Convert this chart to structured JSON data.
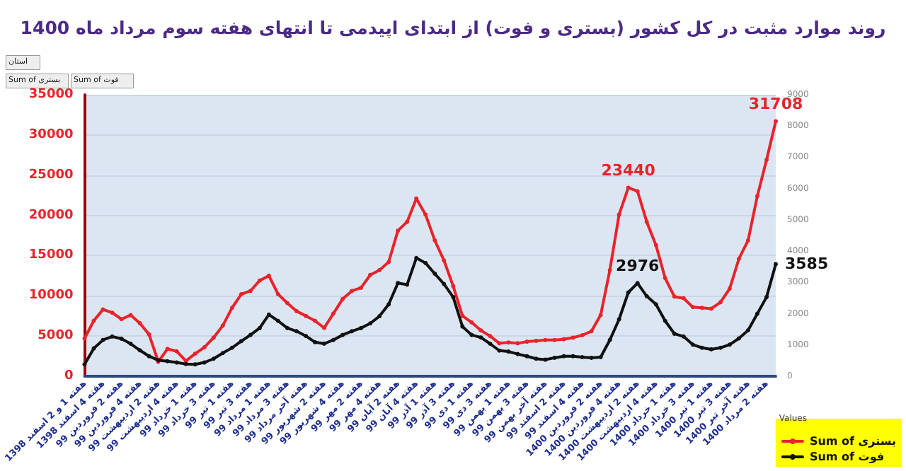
{
  "chart_data": {
    "type": "line",
    "title": "روند موارد مثبت در کل کشور (بستری و فوت) از ابتدای اپیدمی تا انتهای هفته سوم مرداد ماه 1400",
    "categories": [
      "هفته 1 و 2 اسفند 1398",
      null,
      "هفته 4 اسفند 1398",
      null,
      "هفته 2 فروردین 99",
      null,
      "هفته 4 فروردین 99",
      null,
      "هفته 2 اردیبهشت 99",
      null,
      "هفته 4 اردیبهشت 99",
      null,
      "هفته 1 خرداد 99",
      null,
      "هفته 3 خرداد 99",
      null,
      "هفته 1 تیر 99",
      null,
      "هفته 3 تیر 99",
      null,
      "هفته 1 مرداد 99",
      null,
      "هفته 3 مرداد 99",
      null,
      "هفته آخر مرداد 99",
      null,
      "هفته 2 شهریور 99",
      null,
      "هفته 4 شهریور 99",
      null,
      "هفته 2 مهر 99",
      null,
      "هفته 4 مهر 99",
      null,
      "هفته 2 آبان 99",
      null,
      "هفته 4 آبان 99",
      null,
      "هفته 1 آذر 99",
      null,
      "هفته 3 آذر 99",
      null,
      "هفته 1 دی 99",
      null,
      "هفته 3 دی 99",
      null,
      "هفته 1 بهمن 99",
      null,
      "هفته 3 بهمن 99",
      null,
      "هفته آخر بهمن 99",
      null,
      "هفته 2 اسفند 99",
      null,
      "هفته 4 اسفند 99",
      null,
      "هفته 2 فروردین 1400",
      null,
      "هفته 4 فروردین 1400",
      null,
      "هفته 2 اردیبهشت 1400",
      null,
      "هفته 4 اردیبهشت 1400",
      null,
      "هفته 1 خرداد 1400",
      null,
      "هفته 3 خرداد 1400",
      null,
      "هفته 1 تیر 1400",
      null,
      "هفته 3 تیر 1400",
      null,
      "هفته آخر تیر 1400",
      null,
      "هفته 2 مرداد 1400",
      null
    ],
    "series": [
      {
        "name": "Sum of بستری",
        "color": "#e8232b",
        "values": [
          4700,
          6900,
          8300,
          7900,
          7100,
          7600,
          6600,
          5200,
          1800,
          3400,
          3100,
          1900,
          2800,
          3600,
          4800,
          6300,
          8500,
          10200,
          10600,
          11900,
          12500,
          10200,
          9100,
          8100,
          7500,
          6900,
          6000,
          7800,
          9600,
          10600,
          11000,
          12600,
          13200,
          14200,
          18100,
          19200,
          22100,
          20100,
          16900,
          14400,
          11200,
          7500,
          6700,
          5700,
          5000,
          4100,
          4200,
          4100,
          4300,
          4400,
          4500,
          4500,
          4600,
          4800,
          5100,
          5600,
          7600,
          13200,
          20100,
          23440,
          23000,
          19200,
          16300,
          12200,
          9900,
          9700,
          8600,
          8500,
          8400,
          9200,
          10900,
          14600,
          16900,
          22400,
          26900,
          31708
        ],
        "value_labels": [
          null,
          null,
          null,
          null,
          null,
          null,
          null,
          null,
          null,
          null,
          null,
          null,
          null,
          null,
          null,
          null,
          null,
          null,
          null,
          null,
          null,
          null,
          null,
          null,
          null,
          null,
          null,
          null,
          null,
          null,
          null,
          null,
          null,
          null,
          null,
          null,
          null,
          null,
          null,
          null,
          null,
          null,
          null,
          null,
          null,
          null,
          null,
          null,
          null,
          null,
          null,
          null,
          null,
          null,
          null,
          null,
          null,
          null,
          null,
          "23440",
          null,
          null,
          null,
          null,
          null,
          null,
          null,
          null,
          null,
          null,
          null,
          null,
          null,
          null,
          null,
          "31708"
        ]
      },
      {
        "name": "Sum of فوت",
        "color": "#111111",
        "axis": "y2",
        "values": [
          380,
          890,
          1160,
          1270,
          1200,
          1040,
          830,
          640,
          510,
          480,
          440,
          390,
          380,
          440,
          560,
          740,
          910,
          1120,
          1320,
          1540,
          1970,
          1770,
          1540,
          1440,
          1290,
          1090,
          1040,
          1160,
          1320,
          1440,
          1540,
          1690,
          1920,
          2300,
          2980,
          2930,
          3780,
          3620,
          3280,
          2950,
          2530,
          1590,
          1320,
          1240,
          1040,
          820,
          790,
          710,
          640,
          560,
          530,
          590,
          640,
          640,
          610,
          590,
          610,
          1160,
          1820,
          2680,
          2976,
          2560,
          2300,
          1770,
          1360,
          1270,
          1010,
          910,
          860,
          910,
          1010,
          1210,
          1470,
          2000,
          2530,
          3585
        ],
        "value_labels": [
          null,
          null,
          null,
          null,
          null,
          null,
          null,
          null,
          null,
          null,
          null,
          null,
          null,
          null,
          null,
          null,
          null,
          null,
          null,
          null,
          null,
          null,
          null,
          null,
          null,
          null,
          null,
          null,
          null,
          null,
          null,
          null,
          null,
          null,
          null,
          null,
          null,
          null,
          null,
          null,
          null,
          null,
          null,
          null,
          null,
          null,
          null,
          null,
          null,
          null,
          null,
          null,
          null,
          null,
          null,
          null,
          null,
          null,
          null,
          null,
          "2976",
          null,
          null,
          null,
          null,
          null,
          null,
          null,
          null,
          null,
          null,
          null,
          null,
          null,
          null,
          "3585"
        ]
      }
    ],
    "ylim": [
      0,
      35000
    ],
    "yticks": [
      0,
      5000,
      10000,
      15000,
      20000,
      25000,
      30000,
      35000
    ],
    "y2lim": [
      0,
      9000
    ],
    "y2ticks": [
      0,
      1000,
      2000,
      3000,
      4000,
      5000,
      6000,
      7000,
      8000,
      9000
    ],
    "grid": "y",
    "legend": "bottom right",
    "legend_title": "Values",
    "marker": "circle",
    "line_style": "solid",
    "annotations": [
      "استان",
      "Sum of بستری",
      "Sum of فوت"
    ]
  }
}
